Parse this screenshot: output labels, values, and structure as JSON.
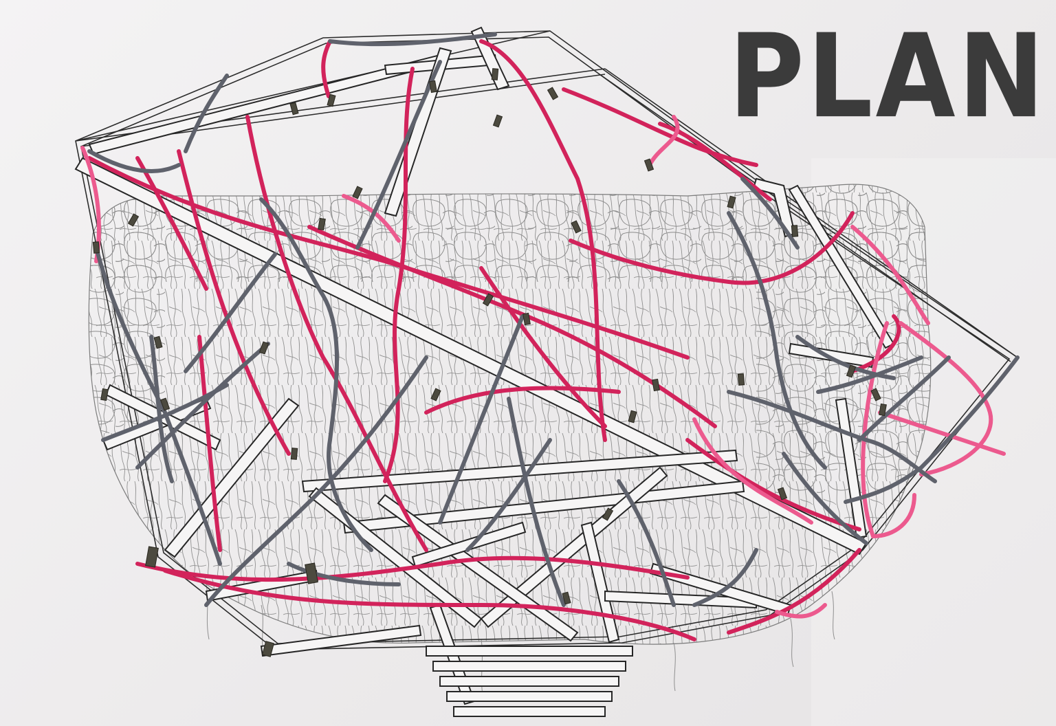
{
  "title": "PLAN",
  "colors": {
    "paper": "#eeeced",
    "ink": "#2c2c2c",
    "heading": "#3b3b3b",
    "string_red": "#d2235b",
    "string_pink": "#ec5a8e",
    "string_grey": "#5f626c",
    "cell_ink": "#8a8a8a",
    "pin": "#4c4a3f"
  }
}
